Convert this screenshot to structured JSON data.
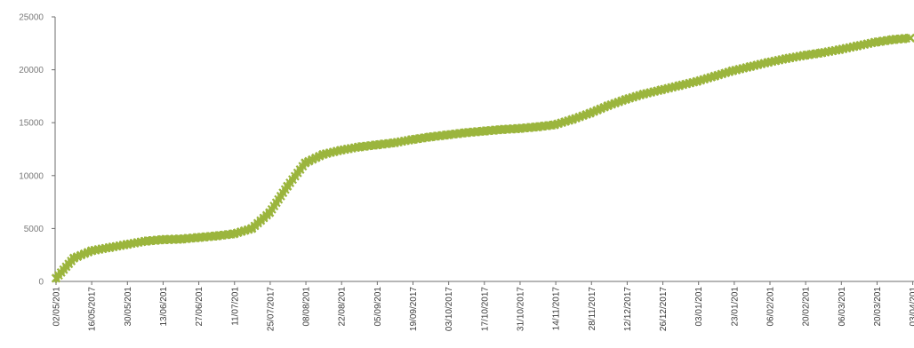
{
  "chart_data": {
    "type": "line",
    "title": "",
    "xlabel": "",
    "ylabel": "",
    "ylim": [
      0,
      25000
    ],
    "yticks": [
      0,
      5000,
      10000,
      15000,
      20000,
      25000
    ],
    "grid": false,
    "legend": "none",
    "x_tick_labels": [
      "02/05/201",
      "16/05/2017",
      "30/05/201",
      "13/06/201",
      "27/06/201",
      "11/07/201",
      "25/07/2017",
      "08/08/201",
      "22/08/201",
      "05/09/201",
      "19/09/2017",
      "03/10/2017",
      "17/10/2017",
      "31/10/2017",
      "14/11/2017",
      "28/11/2017",
      "12/12/2017",
      "26/12/2017",
      "03/01/201",
      "23/01/201",
      "06/02/201",
      "20/02/201",
      "06/03/201",
      "20/03/201",
      "03/04/201"
    ],
    "series": [
      {
        "color": "#9bb53d",
        "marker": "x-star",
        "x": [
          "02/05/2017",
          "09/05/2017",
          "16/05/2017",
          "23/05/2017",
          "30/05/2017",
          "06/06/2017",
          "13/06/2017",
          "20/06/2017",
          "27/06/2017",
          "04/07/2017",
          "11/07/2017",
          "18/07/2017",
          "25/07/2017",
          "01/08/2017",
          "08/08/2017",
          "15/08/2017",
          "22/08/2017",
          "29/08/2017",
          "05/09/2017",
          "12/09/2017",
          "19/09/2017",
          "26/09/2017",
          "03/10/2017",
          "10/10/2017",
          "17/10/2017",
          "24/10/2017",
          "31/10/2017",
          "07/11/2017",
          "14/11/2017",
          "21/11/2017",
          "28/11/2017",
          "05/12/2017",
          "12/12/2017",
          "19/12/2017",
          "26/12/2017",
          "02/01/2018",
          "09/01/2018",
          "16/01/2018",
          "23/01/2018",
          "30/01/2018",
          "06/02/2018",
          "13/02/2018",
          "20/02/2018",
          "27/02/2018",
          "06/03/2018",
          "13/03/2018",
          "20/03/2018",
          "27/03/2018",
          "03/04/2018"
        ],
        "values": [
          300,
          2200,
          2900,
          3200,
          3500,
          3800,
          3950,
          4000,
          4150,
          4300,
          4500,
          5000,
          6500,
          9000,
          11200,
          12000,
          12400,
          12700,
          12900,
          13100,
          13400,
          13650,
          13850,
          14050,
          14200,
          14350,
          14450,
          14600,
          14800,
          15300,
          15900,
          16600,
          17200,
          17700,
          18100,
          18500,
          18900,
          19400,
          19900,
          20300,
          20700,
          21050,
          21350,
          21600,
          21900,
          22250,
          22600,
          22850,
          23000
        ]
      }
    ]
  }
}
